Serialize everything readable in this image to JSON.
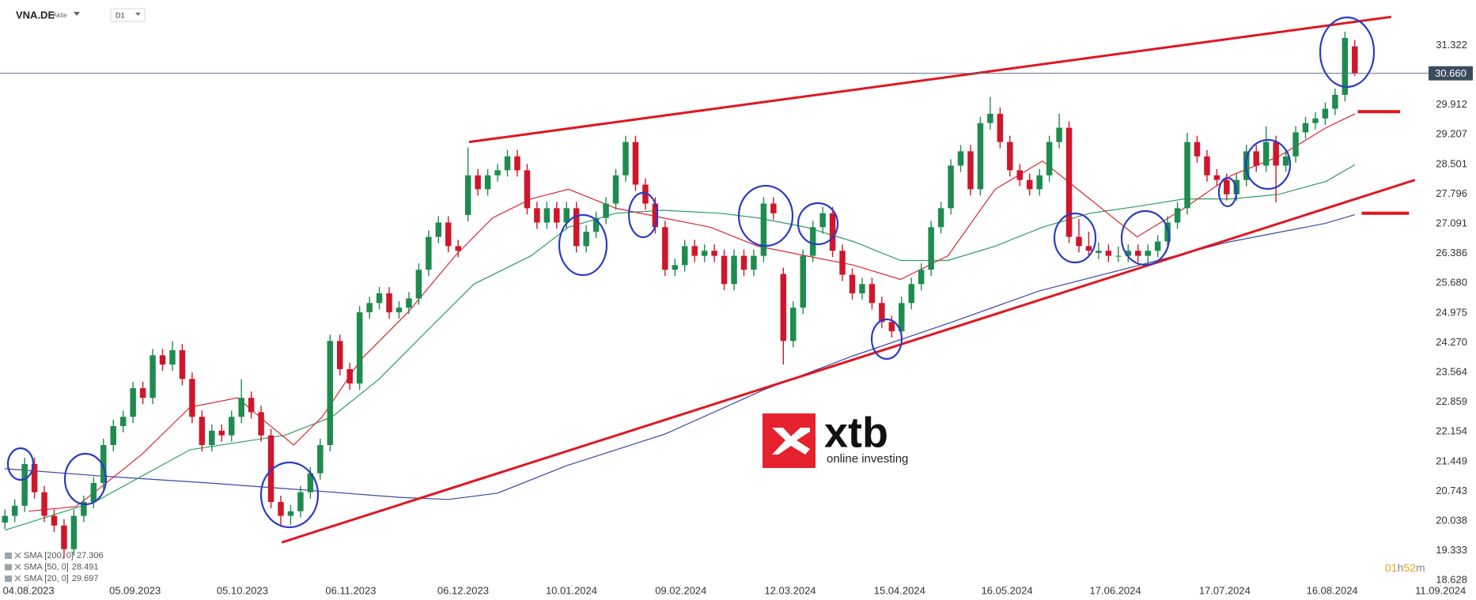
{
  "chart_data": {
    "type": "candlestick",
    "symbol": "VNA.DE",
    "instrument_type": "Aktie",
    "timeframe": "D1",
    "up_color": "#1e8c4e",
    "down_color": "#d0162a",
    "xlim": [
      -0.5,
      149.3
    ],
    "ylim": [
      18.52,
      32.4
    ],
    "yticks": [
      31.322,
      29.912,
      29.207,
      28.501,
      27.796,
      27.091,
      26.386,
      {
        "value": 25.68,
        "label": "25.680"
      },
      24.975,
      {
        "value": 24.27,
        "label": "24.270"
      },
      23.564,
      22.859,
      22.154,
      21.449,
      20.743,
      20.038,
      19.333,
      18.628
    ],
    "xticks": [
      {
        "value": 2.4,
        "label": "04.08.2023"
      },
      {
        "value": 13.2,
        "label": "05.09.2023"
      },
      {
        "value": 24.1,
        "label": "05.10.2023"
      },
      {
        "value": 35.1,
        "label": "06.11.2023"
      },
      {
        "value": 46.5,
        "label": "06.12.2023"
      },
      {
        "value": 57.5,
        "label": "10.01.2024"
      },
      {
        "value": 68.6,
        "label": "09.02.2024"
      },
      {
        "value": 79.7,
        "label": "12.03.2024"
      },
      {
        "value": 90.8,
        "label": "15.04.2024"
      },
      {
        "value": 101.7,
        "label": "16.05.2024"
      },
      {
        "value": 112.7,
        "label": "17.06.2024"
      },
      {
        "value": 123.8,
        "label": "17.07.2024"
      },
      {
        "value": 134.7,
        "label": "16.08.2024"
      },
      {
        "value": 145.7,
        "label": "11.09.2024"
      }
    ],
    "last_price": {
      "value": 30.66,
      "label": "30.660"
    },
    "candles": [
      [
        20.0,
        20.31,
        19.85,
        20.16
      ],
      [
        20.16,
        20.55,
        20.01,
        20.4
      ],
      [
        20.4,
        21.54,
        20.25,
        21.39
      ],
      [
        21.39,
        21.54,
        20.57,
        20.72
      ],
      [
        20.72,
        20.87,
        20.01,
        20.16
      ],
      [
        20.16,
        20.31,
        19.78,
        19.93
      ],
      [
        19.93,
        20.08,
        19.15,
        19.37
      ],
      [
        19.37,
        20.31,
        19.22,
        20.16
      ],
      [
        20.16,
        20.64,
        20.01,
        20.49
      ],
      [
        20.49,
        21.09,
        20.34,
        20.94
      ],
      [
        20.94,
        21.99,
        20.79,
        21.84
      ],
      [
        21.84,
        22.44,
        21.69,
        22.29
      ],
      [
        22.29,
        22.66,
        22.14,
        22.51
      ],
      [
        22.51,
        23.34,
        22.36,
        23.19
      ],
      [
        23.19,
        23.34,
        22.81,
        22.96
      ],
      [
        22.96,
        24.12,
        22.81,
        23.97
      ],
      [
        23.97,
        24.12,
        23.6,
        23.75
      ],
      [
        23.75,
        24.3,
        23.6,
        24.09
      ],
      [
        24.09,
        24.24,
        23.26,
        23.41
      ],
      [
        23.41,
        23.56,
        22.36,
        22.51
      ],
      [
        22.51,
        22.66,
        21.69,
        21.84
      ],
      [
        21.84,
        22.33,
        21.69,
        22.18
      ],
      [
        22.18,
        22.33,
        21.92,
        22.07
      ],
      [
        22.07,
        22.66,
        21.92,
        22.51
      ],
      [
        22.51,
        23.4,
        22.36,
        22.96
      ],
      [
        22.96,
        23.11,
        22.47,
        22.62
      ],
      [
        22.62,
        22.77,
        21.92,
        22.07
      ],
      [
        22.07,
        22.22,
        20.34,
        20.49
      ],
      [
        20.49,
        20.64,
        19.9,
        20.16
      ],
      [
        20.16,
        20.42,
        19.95,
        20.27
      ],
      [
        20.27,
        20.87,
        20.12,
        20.72
      ],
      [
        20.72,
        21.32,
        20.57,
        21.17
      ],
      [
        21.17,
        21.99,
        21.02,
        21.84
      ],
      [
        21.84,
        24.46,
        21.69,
        24.31
      ],
      [
        24.31,
        24.46,
        23.49,
        23.64
      ],
      [
        23.64,
        23.79,
        23.15,
        23.3
      ],
      [
        23.3,
        25.14,
        23.15,
        24.99
      ],
      [
        24.99,
        25.36,
        24.84,
        25.21
      ],
      [
        25.21,
        25.59,
        25.06,
        25.44
      ],
      [
        25.44,
        25.59,
        24.84,
        24.99
      ],
      [
        24.99,
        25.25,
        24.84,
        25.1
      ],
      [
        25.1,
        25.47,
        24.95,
        25.32
      ],
      [
        25.32,
        26.15,
        25.17,
        26.0
      ],
      [
        26.0,
        26.93,
        25.85,
        26.78
      ],
      [
        26.78,
        27.27,
        26.63,
        27.12
      ],
      [
        27.12,
        27.27,
        26.41,
        26.56
      ],
      [
        26.56,
        26.71,
        26.3,
        26.45
      ],
      [
        27.3,
        28.9,
        27.15,
        28.24
      ],
      [
        28.24,
        28.39,
        27.76,
        27.91
      ],
      [
        27.91,
        28.39,
        27.76,
        28.24
      ],
      [
        28.24,
        28.51,
        28.09,
        28.36
      ],
      [
        28.36,
        28.84,
        28.21,
        28.69
      ],
      [
        28.69,
        28.84,
        28.21,
        28.36
      ],
      [
        28.36,
        28.51,
        27.31,
        27.46
      ],
      [
        27.46,
        27.61,
        26.97,
        27.12
      ],
      [
        27.12,
        27.61,
        26.97,
        27.46
      ],
      [
        27.46,
        27.61,
        26.97,
        27.12
      ],
      [
        27.12,
        27.61,
        26.97,
        27.46
      ],
      [
        27.46,
        27.61,
        26.41,
        26.56
      ],
      [
        26.56,
        27.05,
        26.41,
        26.9
      ],
      [
        26.9,
        27.38,
        26.75,
        27.23
      ],
      [
        27.23,
        27.72,
        27.08,
        27.57
      ],
      [
        27.57,
        28.39,
        27.42,
        28.24
      ],
      [
        28.24,
        29.18,
        28.09,
        29.03
      ],
      [
        29.03,
        29.18,
        27.87,
        28.02
      ],
      [
        28.02,
        28.17,
        27.42,
        27.57
      ],
      [
        27.57,
        27.72,
        26.86,
        27.01
      ],
      [
        27.01,
        27.16,
        25.85,
        26.0
      ],
      [
        26.0,
        26.26,
        25.85,
        26.11
      ],
      [
        26.11,
        26.71,
        25.96,
        26.56
      ],
      [
        26.56,
        26.71,
        26.18,
        26.33
      ],
      [
        26.33,
        26.6,
        26.18,
        26.45
      ],
      [
        26.45,
        26.6,
        26.18,
        26.33
      ],
      [
        26.33,
        26.48,
        25.51,
        25.66
      ],
      [
        25.66,
        26.48,
        25.51,
        26.33
      ],
      [
        26.33,
        26.48,
        25.85,
        26.0
      ],
      [
        26.0,
        26.48,
        25.85,
        26.33
      ],
      [
        26.33,
        27.72,
        26.18,
        27.57
      ],
      [
        27.57,
        27.72,
        27.19,
        27.34
      ],
      [
        25.9,
        26.05,
        23.75,
        24.31
      ],
      [
        24.31,
        25.25,
        24.16,
        25.1
      ],
      [
        25.1,
        26.48,
        24.95,
        26.33
      ],
      [
        26.33,
        27.16,
        26.18,
        27.01
      ],
      [
        27.01,
        27.49,
        26.86,
        27.34
      ],
      [
        27.34,
        27.49,
        26.3,
        26.45
      ],
      [
        26.45,
        26.6,
        25.73,
        25.88
      ],
      [
        25.88,
        26.03,
        25.29,
        25.44
      ],
      [
        25.44,
        25.81,
        25.29,
        25.66
      ],
      [
        25.66,
        25.81,
        25.06,
        25.21
      ],
      [
        25.21,
        25.36,
        24.61,
        24.76
      ],
      [
        24.76,
        24.91,
        24.39,
        24.54
      ],
      [
        24.54,
        25.36,
        24.39,
        25.21
      ],
      [
        25.21,
        25.81,
        25.06,
        25.66
      ],
      [
        25.66,
        26.15,
        25.51,
        26.0
      ],
      [
        26.0,
        27.16,
        25.85,
        27.01
      ],
      [
        27.01,
        27.61,
        26.86,
        27.46
      ],
      [
        27.46,
        28.62,
        27.31,
        28.47
      ],
      [
        28.47,
        28.96,
        28.32,
        28.81
      ],
      [
        28.81,
        28.96,
        27.76,
        27.91
      ],
      [
        27.91,
        29.63,
        27.76,
        29.48
      ],
      [
        29.48,
        30.1,
        29.33,
        29.7
      ],
      [
        29.7,
        29.85,
        28.88,
        29.03
      ],
      [
        29.03,
        29.18,
        28.21,
        28.36
      ],
      [
        28.36,
        28.51,
        27.98,
        28.13
      ],
      [
        28.13,
        28.28,
        27.76,
        27.91
      ],
      [
        27.91,
        28.39,
        27.76,
        28.24
      ],
      [
        28.24,
        29.18,
        28.09,
        29.03
      ],
      [
        29.03,
        29.7,
        28.88,
        29.37
      ],
      [
        29.37,
        29.52,
        26.63,
        26.78
      ],
      [
        26.78,
        27.2,
        26.41,
        26.56
      ],
      [
        26.56,
        26.9,
        26.3,
        26.45
      ],
      [
        26.4,
        26.65,
        26.25,
        26.45
      ],
      [
        26.45,
        26.6,
        26.18,
        26.33
      ],
      [
        26.33,
        26.55,
        26.18,
        26.33
      ],
      [
        26.33,
        26.6,
        26.18,
        26.45
      ],
      [
        26.45,
        26.6,
        26.18,
        26.33
      ],
      [
        26.33,
        26.6,
        26.1,
        26.45
      ],
      [
        26.45,
        26.82,
        26.3,
        26.67
      ],
      [
        26.67,
        27.27,
        26.52,
        27.12
      ],
      [
        27.12,
        27.61,
        26.97,
        27.46
      ],
      [
        27.46,
        29.25,
        27.31,
        29.03
      ],
      [
        29.03,
        29.18,
        28.54,
        28.69
      ],
      [
        28.69,
        28.84,
        28.09,
        28.24
      ],
      [
        28.24,
        28.39,
        27.98,
        28.13
      ],
      [
        28.13,
        28.28,
        27.64,
        27.79
      ],
      [
        27.79,
        28.28,
        27.64,
        28.13
      ],
      [
        28.13,
        28.96,
        27.98,
        28.81
      ],
      [
        28.81,
        28.96,
        28.32,
        28.47
      ],
      [
        28.47,
        29.4,
        28.32,
        29.03
      ],
      [
        29.03,
        29.18,
        27.6,
        28.47
      ],
      [
        28.47,
        28.84,
        28.32,
        28.69
      ],
      [
        28.69,
        29.41,
        28.54,
        29.26
      ],
      [
        29.26,
        29.63,
        29.11,
        29.48
      ],
      [
        29.48,
        29.74,
        29.33,
        29.59
      ],
      [
        29.59,
        29.97,
        29.44,
        29.82
      ],
      [
        29.82,
        30.3,
        29.67,
        30.15
      ],
      [
        30.15,
        31.65,
        30.0,
        31.5
      ],
      [
        31.3,
        31.45,
        30.6,
        30.66
      ]
    ],
    "indicators": [
      {
        "name": "SMA [200, 0]",
        "legend_value": 27.306,
        "color": "#3b46a8",
        "x": [
          0,
          10,
          20,
          30,
          40,
          45,
          50,
          57,
          67,
          77,
          86,
          96,
          105,
          115,
          124,
          134,
          137
        ],
        "values": [
          21.28,
          21.1,
          20.95,
          20.78,
          20.6,
          20.55,
          20.7,
          21.35,
          22.1,
          23.15,
          23.95,
          24.75,
          25.5,
          26.1,
          26.65,
          27.1,
          27.306
        ]
      },
      {
        "name": "SMA [50, 0]",
        "legend_value": 28.491,
        "color": "#2e9b62",
        "x": [
          0,
          9.1,
          18.8,
          28.4,
          33.2,
          38.0,
          42.8,
          47.6,
          53.4,
          57.2,
          62.0,
          66.8,
          72.6,
          76.4,
          81.3,
          86.1,
          90.9,
          95.7,
          100.5,
          105.3,
          110.1,
          114.9,
          119.7,
          124.5,
          129.3,
          134.1,
          137
        ],
        "values": [
          19.82,
          20.49,
          21.73,
          22.07,
          22.51,
          23.41,
          24.54,
          25.66,
          26.33,
          27.01,
          27.34,
          27.41,
          27.34,
          27.23,
          27.01,
          26.67,
          26.22,
          26.22,
          26.56,
          27.01,
          27.34,
          27.5,
          27.68,
          27.68,
          27.79,
          28.1,
          28.491
        ]
      },
      {
        "name": "SMA [20, 0]",
        "legend_value": 29.697,
        "color": "#d8282f",
        "x": [
          2.4,
          7.2,
          9.1,
          13.9,
          18.8,
          23.6,
          26.4,
          29.3,
          32.2,
          36.1,
          40.9,
          45.7,
          49.5,
          53.4,
          57.2,
          62.0,
          66.8,
          71.6,
          76.4,
          81.3,
          86.1,
          90.9,
          95.7,
          100.5,
          105.3,
          110.1,
          114.9,
          119.7,
          124.5,
          129.3,
          134.1,
          137
        ],
        "values": [
          20.27,
          20.38,
          20.72,
          21.62,
          22.74,
          22.96,
          22.4,
          21.84,
          22.51,
          23.86,
          24.99,
          26.33,
          27.23,
          27.68,
          27.91,
          27.46,
          27.23,
          27.01,
          26.56,
          26.33,
          26.11,
          25.77,
          26.33,
          27.91,
          28.58,
          27.68,
          26.78,
          27.46,
          28.24,
          28.69,
          29.37,
          29.697
        ]
      }
    ],
    "trendlines": [
      {
        "x": [
          47.1,
          140.7
        ],
        "y": [
          29.03,
          32.0
        ],
        "color": "#e0161f"
      },
      {
        "x": [
          28.1,
          143.1
        ],
        "y": [
          19.53,
          28.13
        ],
        "color": "#e0161f"
      }
    ],
    "levels": [
      {
        "x": [
          137.3,
          141.6
        ],
        "y": 29.75,
        "color": "#e0161f"
      },
      {
        "x": [
          137.7,
          142.5
        ],
        "y": 27.34,
        "color": "#e0161f"
      }
    ],
    "countdown": [
      "01",
      "h",
      "52",
      "m"
    ],
    "watermark": {
      "name": "xtb",
      "tagline": "online investing"
    }
  }
}
